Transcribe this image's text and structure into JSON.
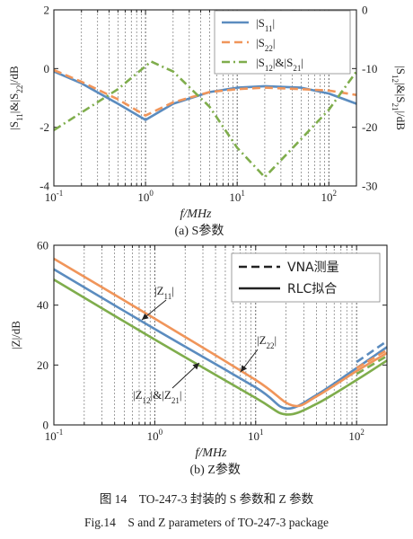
{
  "chart_data": [
    {
      "type": "line",
      "panel_label": "(a) S参数",
      "xlabel": "f/MHz",
      "xscale": "log",
      "xlim": [
        0.1,
        200
      ],
      "x_ticks": [
        "10^-1",
        "10^0",
        "10^1",
        "10^2"
      ],
      "ylabel_left": "|S11|&|S22|/dB",
      "ylim_left": [
        -4,
        2
      ],
      "y_ticks_left": [
        "-4",
        "-2",
        "0",
        "2"
      ],
      "ylabel_right": "|S12|&|S21|/dB",
      "ylim_right": [
        -30,
        0
      ],
      "y_ticks_right": [
        "-30",
        "-20",
        "-10",
        "0"
      ],
      "grid": "vertical",
      "legend_position": "top-right",
      "series": [
        {
          "name": "|S11|",
          "axis": "left",
          "color": "#5b8cbf",
          "dash": "solid",
          "x": [
            0.1,
            0.2,
            0.5,
            1.0,
            2,
            5,
            10,
            20,
            50,
            100,
            200
          ],
          "y": [
            -0.1,
            -0.5,
            -1.2,
            -1.75,
            -1.2,
            -0.8,
            -0.65,
            -0.6,
            -0.65,
            -0.85,
            -1.2
          ]
        },
        {
          "name": "|S22|",
          "axis": "left",
          "color": "#f0955a",
          "dash": "dash",
          "x": [
            0.1,
            0.2,
            0.5,
            1.0,
            2,
            5,
            10,
            20,
            50,
            100,
            200
          ],
          "y": [
            -0.05,
            -0.45,
            -1.05,
            -1.6,
            -1.15,
            -0.8,
            -0.7,
            -0.65,
            -0.7,
            -0.75,
            -0.9
          ]
        },
        {
          "name": "|S12|&|S21|",
          "axis": "right",
          "color": "#7fad4c",
          "dash": "dashdot",
          "x": [
            0.1,
            0.2,
            0.5,
            1.15,
            2,
            5,
            10,
            20,
            50,
            100,
            200
          ],
          "y": [
            -20.5,
            -17.5,
            -13.5,
            -8.8,
            -10.5,
            -16.5,
            -23.5,
            -28.5,
            -22,
            -17,
            -10.5
          ]
        }
      ]
    },
    {
      "type": "line",
      "panel_label": "(b) Z参数",
      "xlabel": "f/MHz",
      "xscale": "log",
      "xlim": [
        0.1,
        200
      ],
      "x_ticks": [
        "10^-1",
        "10^0",
        "10^1",
        "10^2"
      ],
      "ylabel": "|Z|/dB",
      "ylim": [
        0,
        60
      ],
      "y_ticks": [
        "0",
        "20",
        "40",
        "60"
      ],
      "grid": "vertical",
      "legend_position": "top-right",
      "legend": [
        {
          "name": "VNA测量",
          "style": "dash"
        },
        {
          "name": "RLC拟合",
          "style": "solid"
        }
      ],
      "annotations": [
        "|Z11|",
        "|Z22|",
        "|Z12|&|Z21|"
      ],
      "series": [
        {
          "name": "|Z11|",
          "color": "#5b8cbf",
          "x": [
            0.1,
            1,
            10,
            20,
            40,
            100,
            200
          ],
          "y": [
            52,
            32,
            12.5,
            5.5,
            10,
            19,
            26
          ]
        },
        {
          "name": "|Z22|",
          "color": "#f0955a",
          "x": [
            0.1,
            1,
            10,
            23,
            40,
            100,
            200
          ],
          "y": [
            55.5,
            35.5,
            15,
            6.5,
            9.5,
            18,
            24
          ]
        },
        {
          "name": "|Z12|&|Z21|",
          "color": "#7fad4c",
          "x": [
            0.1,
            1,
            10,
            20,
            40,
            100,
            200
          ],
          "y": [
            48.5,
            28.5,
            9,
            3.5,
            7,
            15,
            21.5
          ]
        },
        {
          "name": "|Z11| VNA",
          "color": "#5b8cbf",
          "dash": "dash",
          "x": [
            100,
            200
          ],
          "y": [
            21,
            28
          ]
        },
        {
          "name": "|Z22| VNA",
          "color": "#f0955a",
          "dash": "dash",
          "x": [
            100,
            200
          ],
          "y": [
            19,
            25
          ]
        },
        {
          "name": "|Z12|&|Z21| VNA",
          "color": "#7fad4c",
          "dash": "dash",
          "x": [
            100,
            200
          ],
          "y": [
            17,
            23
          ]
        }
      ]
    }
  ],
  "caption_cn": "图 14　TO-247-3 封装的 S 参数和 Z 参数",
  "caption_en": "Fig.14　S and Z parameters of TO-247-3 package"
}
